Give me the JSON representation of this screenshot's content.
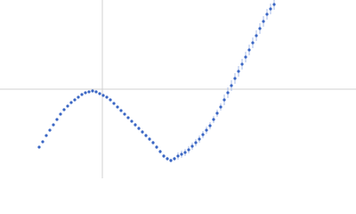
{
  "chart_data": {
    "type": "scatter",
    "x": [
      44,
      48,
      52,
      56,
      60,
      64,
      68,
      72,
      76,
      80,
      84,
      88,
      92,
      96,
      100,
      104,
      108,
      112,
      116,
      120,
      124,
      128,
      132,
      136,
      140,
      144,
      148,
      152,
      156,
      160,
      164,
      168,
      172,
      176,
      180,
      184,
      188,
      192,
      196,
      200,
      204,
      208,
      212,
      216,
      220,
      224,
      228,
      232,
      236,
      240,
      244,
      248,
      252,
      256,
      260,
      264,
      268,
      272,
      276,
      280,
      284,
      288,
      292,
      296,
      300,
      304,
      308
    ],
    "series": [
      {
        "color": "#3a66c4",
        "error_color": "#a9bde9",
        "values": [
          35,
          41,
          48,
          54,
          60,
          66,
          72,
          77,
          81,
          85,
          88,
          91,
          94,
          96,
          97,
          98,
          97,
          95,
          93,
          91,
          88,
          84,
          80,
          76,
          72,
          68,
          64,
          60,
          56,
          52,
          48,
          44,
          40,
          35,
          30,
          25,
          22,
          20,
          22,
          25,
          27,
          29,
          32,
          36,
          40,
          44,
          49,
          54,
          59,
          66,
          73,
          80,
          88,
          96,
          104,
          112,
          120,
          128,
          136,
          144,
          152,
          160,
          168,
          176,
          184,
          190,
          195
        ],
        "errors": [
          1,
          1,
          1,
          1,
          1,
          1,
          1,
          1,
          1,
          1,
          1,
          1,
          1,
          1,
          1,
          1,
          1,
          1,
          1,
          1,
          1,
          1,
          1,
          1,
          1,
          1,
          1,
          2,
          2,
          2,
          2,
          2,
          2,
          2,
          2,
          2,
          2,
          2,
          2,
          4,
          4,
          4,
          4,
          4,
          4,
          4,
          4,
          4,
          4,
          4,
          4,
          4,
          6,
          6,
          6,
          6,
          6,
          6,
          6,
          6,
          6,
          6,
          6,
          6,
          6,
          6,
          6
        ]
      }
    ],
    "xlim": [
      0,
      400
    ],
    "ylim": [
      0,
      200
    ],
    "reference_lines": {
      "x": 115,
      "y": 100,
      "color": "#d0d0d0"
    }
  }
}
